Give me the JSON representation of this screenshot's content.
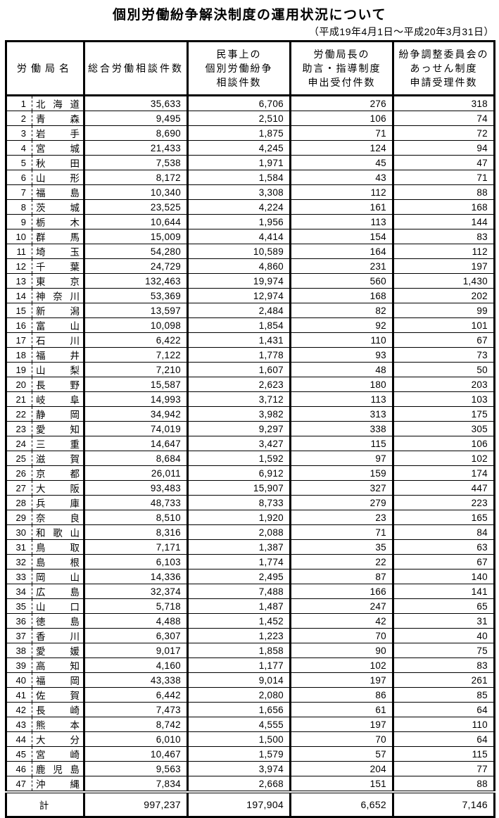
{
  "title": "個別労働紛争解決制度の運用状況について",
  "subtitle": "（平成19年4月1日～平成20年3月31日）",
  "table": {
    "headers": {
      "bureau": [
        "労働局名"
      ],
      "total": [
        "総合労働相談件数"
      ],
      "civil": [
        "民事上の",
        "個別労働紛争",
        "相談件数"
      ],
      "advice": [
        "労働局長の",
        "助言・指導制度",
        "申出受付件数"
      ],
      "mediation": [
        "紛争調整委員会の",
        "あっせん制度",
        "申請受理件数"
      ]
    },
    "rows": [
      {
        "no": "1",
        "name": "北海道",
        "values": [
          "35,633",
          "6,706",
          "276",
          "318"
        ]
      },
      {
        "no": "2",
        "name": "青森",
        "values": [
          "9,495",
          "2,510",
          "106",
          "74"
        ]
      },
      {
        "no": "3",
        "name": "岩手",
        "values": [
          "8,690",
          "1,875",
          "71",
          "72"
        ]
      },
      {
        "no": "4",
        "name": "宮城",
        "values": [
          "21,433",
          "4,245",
          "124",
          "94"
        ]
      },
      {
        "no": "5",
        "name": "秋田",
        "values": [
          "7,538",
          "1,971",
          "45",
          "47"
        ]
      },
      {
        "no": "6",
        "name": "山形",
        "values": [
          "8,172",
          "1,584",
          "43",
          "71"
        ]
      },
      {
        "no": "7",
        "name": "福島",
        "values": [
          "10,340",
          "3,308",
          "112",
          "88"
        ]
      },
      {
        "no": "8",
        "name": "茨城",
        "values": [
          "23,525",
          "4,224",
          "161",
          "168"
        ]
      },
      {
        "no": "9",
        "name": "栃木",
        "values": [
          "10,644",
          "1,956",
          "113",
          "144"
        ]
      },
      {
        "no": "10",
        "name": "群馬",
        "values": [
          "15,009",
          "4,414",
          "154",
          "83"
        ]
      },
      {
        "no": "11",
        "name": "埼玉",
        "values": [
          "54,280",
          "10,589",
          "164",
          "112"
        ]
      },
      {
        "no": "12",
        "name": "千葉",
        "values": [
          "24,729",
          "4,860",
          "231",
          "197"
        ]
      },
      {
        "no": "13",
        "name": "東京",
        "values": [
          "132,463",
          "19,974",
          "560",
          "1,430"
        ]
      },
      {
        "no": "14",
        "name": "神奈川",
        "values": [
          "53,369",
          "12,974",
          "168",
          "202"
        ]
      },
      {
        "no": "15",
        "name": "新潟",
        "values": [
          "13,597",
          "2,484",
          "82",
          "99"
        ]
      },
      {
        "no": "16",
        "name": "富山",
        "values": [
          "10,098",
          "1,854",
          "92",
          "101"
        ]
      },
      {
        "no": "17",
        "name": "石川",
        "values": [
          "6,422",
          "1,431",
          "110",
          "67"
        ]
      },
      {
        "no": "18",
        "name": "福井",
        "values": [
          "7,122",
          "1,778",
          "93",
          "73"
        ]
      },
      {
        "no": "19",
        "name": "山梨",
        "values": [
          "7,210",
          "1,607",
          "48",
          "50"
        ]
      },
      {
        "no": "20",
        "name": "長野",
        "values": [
          "15,587",
          "2,623",
          "180",
          "203"
        ]
      },
      {
        "no": "21",
        "name": "岐阜",
        "values": [
          "14,993",
          "3,712",
          "113",
          "103"
        ]
      },
      {
        "no": "22",
        "name": "静岡",
        "values": [
          "34,942",
          "3,982",
          "313",
          "175"
        ]
      },
      {
        "no": "23",
        "name": "愛知",
        "values": [
          "74,019",
          "9,297",
          "338",
          "305"
        ]
      },
      {
        "no": "24",
        "name": "三重",
        "values": [
          "14,647",
          "3,427",
          "115",
          "106"
        ]
      },
      {
        "no": "25",
        "name": "滋賀",
        "values": [
          "8,684",
          "1,592",
          "97",
          "102"
        ]
      },
      {
        "no": "26",
        "name": "京都",
        "values": [
          "26,011",
          "6,912",
          "159",
          "174"
        ]
      },
      {
        "no": "27",
        "name": "大阪",
        "values": [
          "93,483",
          "15,907",
          "327",
          "447"
        ]
      },
      {
        "no": "28",
        "name": "兵庫",
        "values": [
          "48,733",
          "8,733",
          "279",
          "223"
        ]
      },
      {
        "no": "29",
        "name": "奈良",
        "values": [
          "8,510",
          "1,920",
          "23",
          "165"
        ]
      },
      {
        "no": "30",
        "name": "和歌山",
        "values": [
          "8,316",
          "2,088",
          "71",
          "84"
        ]
      },
      {
        "no": "31",
        "name": "鳥取",
        "values": [
          "7,171",
          "1,387",
          "35",
          "63"
        ]
      },
      {
        "no": "32",
        "name": "島根",
        "values": [
          "6,103",
          "1,774",
          "22",
          "67"
        ]
      },
      {
        "no": "33",
        "name": "岡山",
        "values": [
          "14,336",
          "2,495",
          "87",
          "140"
        ]
      },
      {
        "no": "34",
        "name": "広島",
        "values": [
          "32,374",
          "7,488",
          "166",
          "141"
        ]
      },
      {
        "no": "35",
        "name": "山口",
        "values": [
          "5,718",
          "1,487",
          "247",
          "65"
        ]
      },
      {
        "no": "36",
        "name": "徳島",
        "values": [
          "4,488",
          "1,452",
          "42",
          "31"
        ]
      },
      {
        "no": "37",
        "name": "香川",
        "values": [
          "6,307",
          "1,223",
          "70",
          "40"
        ]
      },
      {
        "no": "38",
        "name": "愛媛",
        "values": [
          "9,017",
          "1,858",
          "90",
          "75"
        ]
      },
      {
        "no": "39",
        "name": "高知",
        "values": [
          "4,160",
          "1,177",
          "102",
          "83"
        ]
      },
      {
        "no": "40",
        "name": "福岡",
        "values": [
          "43,338",
          "9,014",
          "197",
          "261"
        ]
      },
      {
        "no": "41",
        "name": "佐賀",
        "values": [
          "6,442",
          "2,080",
          "86",
          "85"
        ]
      },
      {
        "no": "42",
        "name": "長崎",
        "values": [
          "7,473",
          "1,656",
          "61",
          "64"
        ]
      },
      {
        "no": "43",
        "name": "熊本",
        "values": [
          "8,742",
          "4,555",
          "197",
          "110"
        ]
      },
      {
        "no": "44",
        "name": "大分",
        "values": [
          "6,010",
          "1,500",
          "70",
          "64"
        ]
      },
      {
        "no": "45",
        "name": "宮崎",
        "values": [
          "10,467",
          "1,579",
          "57",
          "115"
        ]
      },
      {
        "no": "46",
        "name": "鹿児島",
        "values": [
          "9,563",
          "3,974",
          "204",
          "77"
        ]
      },
      {
        "no": "47",
        "name": "沖縄",
        "values": [
          "7,834",
          "2,668",
          "151",
          "88"
        ]
      }
    ],
    "total": {
      "label": "計",
      "values": [
        "997,237",
        "197,904",
        "6,652",
        "7,146"
      ]
    }
  }
}
